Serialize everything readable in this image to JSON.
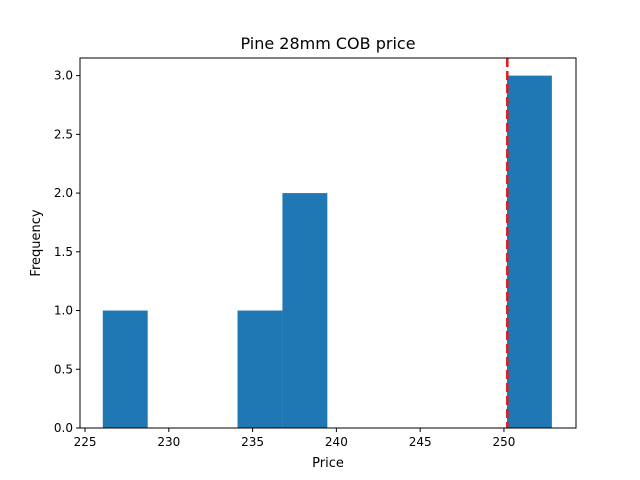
{
  "chart_data": {
    "type": "histogram",
    "title": "Pine 28mm COB price",
    "xlabel": "Price",
    "ylabel": "Frequency",
    "xlim": [
      224.7,
      254.3
    ],
    "ylim": [
      0,
      3.15
    ],
    "xticks": [
      225,
      230,
      235,
      240,
      245,
      250
    ],
    "yticks": [
      0.0,
      0.5,
      1.0,
      1.5,
      2.0,
      2.5,
      3.0
    ],
    "bins": [
      {
        "x0": 226.06,
        "x1": 228.74,
        "count": 1
      },
      {
        "x0": 234.1,
        "x1": 236.78,
        "count": 1
      },
      {
        "x0": 236.78,
        "x1": 239.46,
        "count": 2
      },
      {
        "x0": 250.18,
        "x1": 252.86,
        "count": 3
      }
    ],
    "bar_color": "#1f77b4",
    "reference_line": {
      "x": 250.2,
      "color": "#e41a1c",
      "style": "dashed"
    },
    "grid": false,
    "legend": "none"
  }
}
